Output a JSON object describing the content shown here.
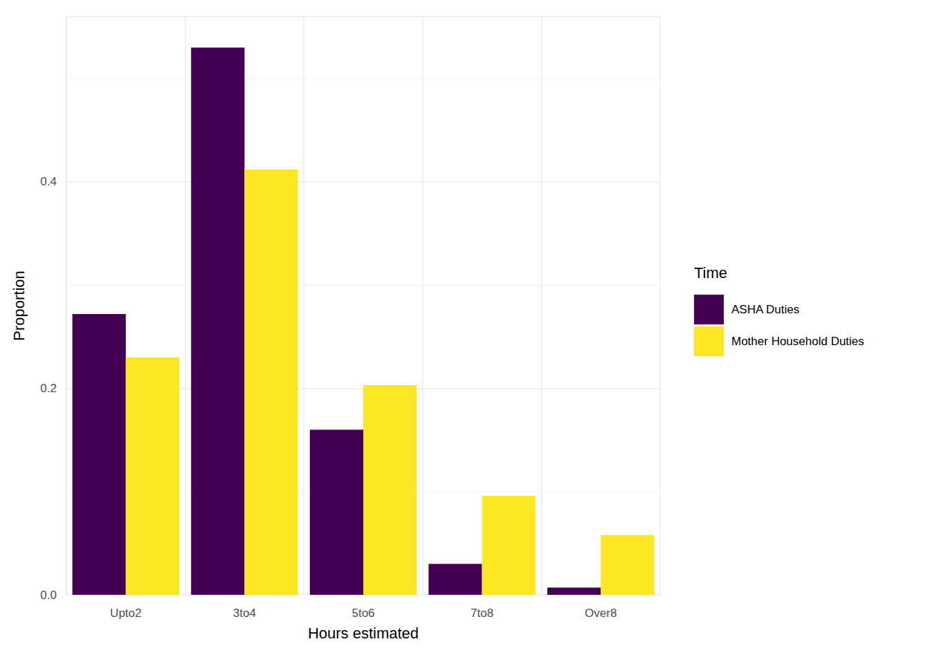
{
  "chart_data": {
    "type": "bar",
    "x_label": "Hours estimated",
    "y_label": "Proportion",
    "legend_title": "Time",
    "legend": "right",
    "grid": true,
    "categories": [
      "Upto2",
      "3to4",
      "5to6",
      "7to8",
      "Over8"
    ],
    "series": [
      {
        "name": "ASHA Duties",
        "color": "#440154",
        "values": [
          0.272,
          0.53,
          0.16,
          0.03,
          0.007
        ]
      },
      {
        "name": "Mother Household Duties",
        "color": "#FDE725",
        "values": [
          0.23,
          0.412,
          0.203,
          0.096,
          0.058
        ]
      }
    ],
    "ylim": [
      0,
      0.56
    ],
    "yticks": [
      {
        "value": 0,
        "label": "0.0"
      },
      {
        "value": 0.2,
        "label": "0.2"
      },
      {
        "value": 0.4,
        "label": "0.4"
      }
    ]
  }
}
